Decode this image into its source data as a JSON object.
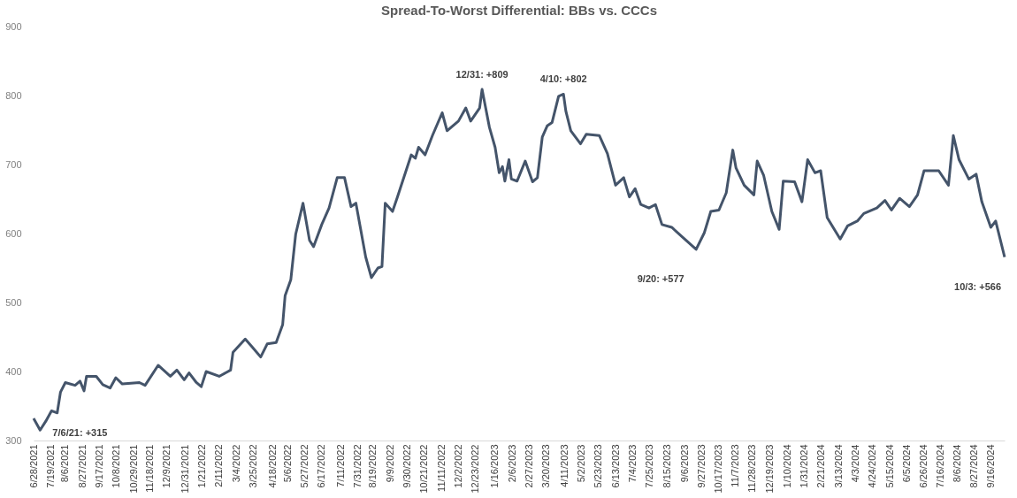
{
  "chart_data": {
    "type": "line",
    "title": "Spread-To-Worst Differential:  BBs vs. CCCs",
    "x": [
      "2021-06-28",
      "2021-07-06",
      "2021-07-13",
      "2021-07-20",
      "2021-07-27",
      "2021-07-31",
      "2021-08-06",
      "2021-08-18",
      "2021-08-24",
      "2021-08-29",
      "2021-09-01",
      "2021-09-13",
      "2021-09-21",
      "2021-09-30",
      "2021-10-07",
      "2021-10-15",
      "2021-11-05",
      "2021-11-12",
      "2021-11-28",
      "2021-12-13",
      "2021-12-21",
      "2021-12-30",
      "2022-01-05",
      "2022-01-14",
      "2022-01-20",
      "2022-01-26",
      "2022-02-11",
      "2022-02-25",
      "2022-02-28",
      "2022-03-15",
      "2022-03-24",
      "2022-04-03",
      "2022-04-11",
      "2022-04-22",
      "2022-04-30",
      "2022-05-03",
      "2022-05-10",
      "2022-05-16",
      "2022-05-25",
      "2022-06-02",
      "2022-06-07",
      "2022-06-17",
      "2022-06-26",
      "2022-07-06",
      "2022-07-15",
      "2022-07-23",
      "2022-07-29",
      "2022-08-10",
      "2022-08-17",
      "2022-08-25",
      "2022-08-30",
      "2022-09-03",
      "2022-09-12",
      "2022-09-18",
      "2022-10-05",
      "2022-10-10",
      "2022-10-14",
      "2022-10-22",
      "2022-10-31",
      "2022-11-12",
      "2022-11-18",
      "2022-12-02",
      "2022-12-11",
      "2022-12-17",
      "2022-12-28",
      "2022-12-31",
      "2023-01-09",
      "2023-01-16",
      "2023-01-21",
      "2023-01-25",
      "2023-01-28",
      "2023-02-02",
      "2023-02-05",
      "2023-02-12",
      "2023-02-22",
      "2023-03-03",
      "2023-03-09",
      "2023-03-15",
      "2023-03-21",
      "2023-03-27",
      "2023-04-04",
      "2023-04-10",
      "2023-04-13",
      "2023-04-19",
      "2023-05-01",
      "2023-05-08",
      "2023-05-24",
      "2023-06-03",
      "2023-06-13",
      "2023-06-23",
      "2023-06-30",
      "2023-07-07",
      "2023-07-14",
      "2023-07-24",
      "2023-08-01",
      "2023-08-09",
      "2023-08-21",
      "2023-09-03",
      "2023-09-20",
      "2023-09-30",
      "2023-10-08",
      "2023-10-18",
      "2023-10-27",
      "2023-11-04",
      "2023-11-08",
      "2023-11-18",
      "2023-11-30",
      "2023-12-04",
      "2023-12-12",
      "2023-12-22",
      "2023-12-31",
      "2024-01-05",
      "2024-01-19",
      "2024-01-28",
      "2024-02-04",
      "2024-02-13",
      "2024-02-20",
      "2024-02-28",
      "2024-03-15",
      "2024-03-24",
      "2024-04-05",
      "2024-04-13",
      "2024-04-29",
      "2024-05-09",
      "2024-05-17",
      "2024-05-27",
      "2024-06-08",
      "2024-06-18",
      "2024-06-26",
      "2024-07-14",
      "2024-07-26",
      "2024-08-01",
      "2024-08-08",
      "2024-08-20",
      "2024-08-29",
      "2024-09-05",
      "2024-09-16",
      "2024-09-22",
      "2024-10-03"
    ],
    "series": [
      {
        "color": "#44546a",
        "values": [
          332,
          315,
          328,
          343,
          340,
          370,
          384,
          380,
          386,
          372,
          393,
          393,
          381,
          376,
          391,
          382,
          384,
          380,
          409,
          393,
          402,
          388,
          398,
          384,
          378,
          400,
          393,
          402,
          428,
          447,
          435,
          421,
          440,
          442,
          468,
          510,
          533,
          599,
          644,
          590,
          581,
          613,
          637,
          681,
          681,
          639,
          644,
          566,
          536,
          550,
          552,
          644,
          632,
          653,
          714,
          709,
          725,
          714,
          742,
          775,
          749,
          763,
          782,
          763,
          782,
          809,
          754,
          725,
          688,
          697,
          676,
          707,
          679,
          676,
          705,
          675,
          681,
          740,
          756,
          761,
          799,
          802,
          777,
          749,
          730,
          744,
          742,
          716,
          670,
          681,
          653,
          665,
          642,
          637,
          642,
          613,
          609,
          595,
          577,
          601,
          632,
          634,
          659,
          721,
          695,
          670,
          656,
          705,
          684,
          632,
          606,
          676,
          675,
          646,
          707,
          688,
          691,
          623,
          592,
          611,
          618,
          629,
          637,
          648,
          634,
          651,
          639,
          656,
          691,
          691,
          670,
          742,
          707,
          679,
          686,
          646,
          609,
          618,
          566
        ]
      }
    ],
    "ylim": [
      300,
      900
    ],
    "yticks": [
      300,
      400,
      500,
      600,
      700,
      800,
      900
    ],
    "xlim": [
      "2021-06-28",
      "2024-10-03"
    ],
    "xticks": [
      {
        "value": "2021-06-28",
        "label": "6/28/2021"
      },
      {
        "value": "2021-07-19",
        "label": "7/19/2021"
      },
      {
        "value": "2021-08-06",
        "label": "8/6/2021"
      },
      {
        "value": "2021-08-27",
        "label": "8/27/2021"
      },
      {
        "value": "2021-09-17",
        "label": "9/17/2021"
      },
      {
        "value": "2021-10-08",
        "label": "10/8/2021"
      },
      {
        "value": "2021-10-29",
        "label": "10/29/2021"
      },
      {
        "value": "2021-11-18",
        "label": "11/18/2021"
      },
      {
        "value": "2021-12-09",
        "label": "12/9/2021"
      },
      {
        "value": "2021-12-31",
        "label": "12/31/2021"
      },
      {
        "value": "2022-01-21",
        "label": "1/21/2022"
      },
      {
        "value": "2022-02-11",
        "label": "2/11/2022"
      },
      {
        "value": "2022-03-04",
        "label": "3/4/2022"
      },
      {
        "value": "2022-03-25",
        "label": "3/25/2022"
      },
      {
        "value": "2022-04-18",
        "label": "4/18/2022"
      },
      {
        "value": "2022-05-06",
        "label": "5/6/2022"
      },
      {
        "value": "2022-05-27",
        "label": "5/27/2022"
      },
      {
        "value": "2022-06-17",
        "label": "6/17/2022"
      },
      {
        "value": "2022-07-11",
        "label": "7/11/2022"
      },
      {
        "value": "2022-07-31",
        "label": "7/31/2022"
      },
      {
        "value": "2022-08-19",
        "label": "8/19/2022"
      },
      {
        "value": "2022-09-09",
        "label": "9/9/2022"
      },
      {
        "value": "2022-09-30",
        "label": "9/30/2022"
      },
      {
        "value": "2022-10-21",
        "label": "10/21/2022"
      },
      {
        "value": "2022-11-11",
        "label": "11/11/2022"
      },
      {
        "value": "2022-12-02",
        "label": "12/2/2022"
      },
      {
        "value": "2022-12-23",
        "label": "12/23/2022"
      },
      {
        "value": "2023-01-16",
        "label": "1/16/2023"
      },
      {
        "value": "2023-02-06",
        "label": "2/6/2023"
      },
      {
        "value": "2023-02-27",
        "label": "2/27/2023"
      },
      {
        "value": "2023-03-20",
        "label": "3/20/2023"
      },
      {
        "value": "2023-04-11",
        "label": "4/11/2023"
      },
      {
        "value": "2023-05-02",
        "label": "5/2/2023"
      },
      {
        "value": "2023-05-23",
        "label": "5/23/2023"
      },
      {
        "value": "2023-06-13",
        "label": "6/13/2023"
      },
      {
        "value": "2023-07-04",
        "label": "7/4/2023"
      },
      {
        "value": "2023-07-25",
        "label": "7/25/2023"
      },
      {
        "value": "2023-08-15",
        "label": "8/15/2023"
      },
      {
        "value": "2023-09-06",
        "label": "9/6/2023"
      },
      {
        "value": "2023-09-27",
        "label": "9/27/2023"
      },
      {
        "value": "2023-10-17",
        "label": "10/17/2023"
      },
      {
        "value": "2023-11-07",
        "label": "11/7/2023"
      },
      {
        "value": "2023-11-28",
        "label": "11/28/2023"
      },
      {
        "value": "2023-12-19",
        "label": "12/19/2023"
      },
      {
        "value": "2024-01-10",
        "label": "1/10/2024"
      },
      {
        "value": "2024-01-31",
        "label": "1/31/2024"
      },
      {
        "value": "2024-02-21",
        "label": "2/21/2024"
      },
      {
        "value": "2024-03-13",
        "label": "3/13/2024"
      },
      {
        "value": "2024-04-03",
        "label": "4/3/2024"
      },
      {
        "value": "2024-04-24",
        "label": "4/24/2024"
      },
      {
        "value": "2024-05-15",
        "label": "5/15/2024"
      },
      {
        "value": "2024-06-05",
        "label": "6/5/2024"
      },
      {
        "value": "2024-06-26",
        "label": "6/26/2024"
      },
      {
        "value": "2024-07-16",
        "label": "7/16/2024"
      },
      {
        "value": "2024-08-06",
        "label": "8/6/2024"
      },
      {
        "value": "2024-08-27",
        "label": "8/27/2024"
      },
      {
        "value": "2024-09-16",
        "label": "9/16/2024"
      }
    ],
    "grid": false,
    "legend": false,
    "marker": "none",
    "line_style": "solid",
    "annotations": [
      {
        "text": "7/6/21: +315",
        "x": "2021-07-06",
        "y": 315
      },
      {
        "text": "12/31: +809",
        "x": "2022-12-31",
        "y": 809
      },
      {
        "text": "4/10: +802",
        "x": "2023-04-10",
        "y": 802
      },
      {
        "text": "9/20: +577",
        "x": "2023-09-20",
        "y": 577
      },
      {
        "text": "10/3: +566",
        "x": "2024-10-03",
        "y": 566
      }
    ]
  }
}
